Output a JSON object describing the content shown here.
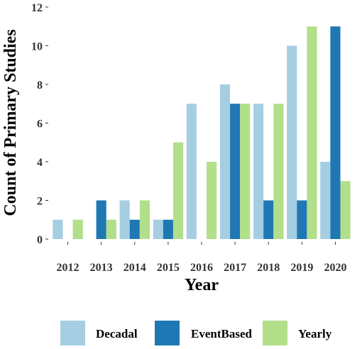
{
  "chart_data": {
    "type": "bar",
    "title": "",
    "xlabel": "Year",
    "ylabel": "Count of Primary Studies",
    "categories": [
      "2012",
      "2013",
      "2014",
      "2015",
      "2016",
      "2017",
      "2018",
      "2019",
      "2020"
    ],
    "series": [
      {
        "name": "Decadal",
        "color": "#a6cee3",
        "values": [
          1,
          0,
          2,
          1,
          7,
          8,
          7,
          10,
          4
        ]
      },
      {
        "name": "EventBased",
        "color": "#1f78b4",
        "values": [
          0,
          2,
          1,
          1,
          0,
          7,
          2,
          2,
          11
        ]
      },
      {
        "name": "Yearly",
        "color": "#b2df8a",
        "values": [
          1,
          1,
          2,
          5,
          4,
          7,
          7,
          11,
          3
        ]
      }
    ],
    "ylim": [
      0,
      12
    ],
    "yticks": [
      0,
      2,
      4,
      6,
      8,
      10,
      12
    ],
    "grid": false,
    "legend_position": "bottom"
  }
}
